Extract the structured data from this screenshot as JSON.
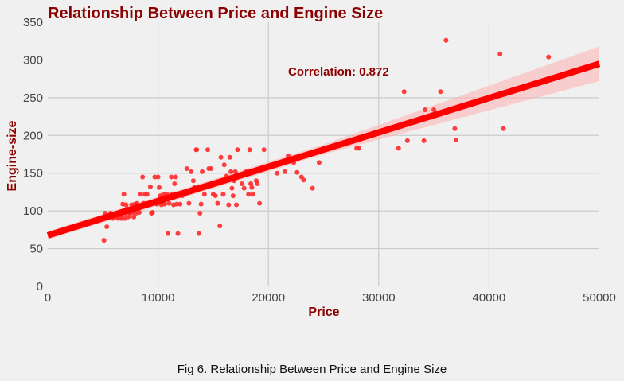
{
  "caption": "Fig 6. Relationship Between Price and Engine Size",
  "chart_data": {
    "type": "scatter",
    "title": "Relationship Between Price and Engine Size",
    "xlabel": "Price",
    "ylabel": "Engine-size",
    "xlim": [
      0,
      50000
    ],
    "ylim": [
      0,
      350
    ],
    "xticks": [
      0,
      10000,
      20000,
      30000,
      40000,
      50000
    ],
    "yticks": [
      0,
      50,
      100,
      150,
      200,
      250,
      300,
      350
    ],
    "grid": true,
    "annotation": "Correlation: 0.872",
    "regression": {
      "slope": 0.00455,
      "intercept": 67.5
    },
    "confidence_band": [
      [
        0,
        62,
        73
      ],
      [
        25000,
        175,
        188
      ],
      [
        50000,
        272,
        318
      ]
    ],
    "colors": {
      "points": "#ff2a2a",
      "line": "#ff0000",
      "band": "#ffb0b0"
    },
    "points": [
      [
        5100,
        61
      ],
      [
        5200,
        97
      ],
      [
        5350,
        79
      ],
      [
        5500,
        92
      ],
      [
        5700,
        97
      ],
      [
        5900,
        90
      ],
      [
        6200,
        92
      ],
      [
        6300,
        95
      ],
      [
        6400,
        90
      ],
      [
        6500,
        97
      ],
      [
        6600,
        92
      ],
      [
        6700,
        90
      ],
      [
        6800,
        109
      ],
      [
        6900,
        122
      ],
      [
        7000,
        90
      ],
      [
        7050,
        97
      ],
      [
        7100,
        108
      ],
      [
        7200,
        103
      ],
      [
        7300,
        92
      ],
      [
        7400,
        98
      ],
      [
        7500,
        97
      ],
      [
        7600,
        108
      ],
      [
        7700,
        98
      ],
      [
        7800,
        92
      ],
      [
        7900,
        109
      ],
      [
        8000,
        97
      ],
      [
        8100,
        110
      ],
      [
        8200,
        103
      ],
      [
        8300,
        98
      ],
      [
        8400,
        122
      ],
      [
        8500,
        108
      ],
      [
        8600,
        145
      ],
      [
        8700,
        110
      ],
      [
        8800,
        122
      ],
      [
        8900,
        109
      ],
      [
        9000,
        122
      ],
      [
        9100,
        110
      ],
      [
        9200,
        108
      ],
      [
        9300,
        132
      ],
      [
        9400,
        97
      ],
      [
        9500,
        98
      ],
      [
        9600,
        110
      ],
      [
        9700,
        145
      ],
      [
        9800,
        110
      ],
      [
        9900,
        109
      ],
      [
        10000,
        145
      ],
      [
        10100,
        131
      ],
      [
        10200,
        120
      ],
      [
        10300,
        108
      ],
      [
        10400,
        110
      ],
      [
        10500,
        122
      ],
      [
        10600,
        109
      ],
      [
        10700,
        120
      ],
      [
        10800,
        122
      ],
      [
        10900,
        70
      ],
      [
        11000,
        110
      ],
      [
        11100,
        120
      ],
      [
        11200,
        145
      ],
      [
        11300,
        122
      ],
      [
        11400,
        108
      ],
      [
        11500,
        136
      ],
      [
        11600,
        145
      ],
      [
        11700,
        109
      ],
      [
        11800,
        70
      ],
      [
        11900,
        122
      ],
      [
        12000,
        109
      ],
      [
        12200,
        120
      ],
      [
        12400,
        122
      ],
      [
        12600,
        156
      ],
      [
        12800,
        110
      ],
      [
        13000,
        152
      ],
      [
        13200,
        140
      ],
      [
        13300,
        131
      ],
      [
        13450,
        181
      ],
      [
        13500,
        181
      ],
      [
        13700,
        70
      ],
      [
        13800,
        97
      ],
      [
        13900,
        109
      ],
      [
        14000,
        152
      ],
      [
        14200,
        122
      ],
      [
        14500,
        181
      ],
      [
        14600,
        156
      ],
      [
        14800,
        156
      ],
      [
        15000,
        122
      ],
      [
        15200,
        120
      ],
      [
        15400,
        110
      ],
      [
        15600,
        80
      ],
      [
        15700,
        171
      ],
      [
        15900,
        122
      ],
      [
        16000,
        161
      ],
      [
        16200,
        146
      ],
      [
        16400,
        108
      ],
      [
        16500,
        171
      ],
      [
        16600,
        152
      ],
      [
        16700,
        130
      ],
      [
        16800,
        120
      ],
      [
        16900,
        140
      ],
      [
        17000,
        152
      ],
      [
        17100,
        108
      ],
      [
        17200,
        181
      ],
      [
        17400,
        146
      ],
      [
        17600,
        136
      ],
      [
        17800,
        130
      ],
      [
        18000,
        152
      ],
      [
        18200,
        122
      ],
      [
        18300,
        181
      ],
      [
        18400,
        136
      ],
      [
        18500,
        131
      ],
      [
        18600,
        122
      ],
      [
        18800,
        152
      ],
      [
        18900,
        140
      ],
      [
        19000,
        136
      ],
      [
        19200,
        110
      ],
      [
        19600,
        181
      ],
      [
        20800,
        150
      ],
      [
        21500,
        152
      ],
      [
        21800,
        173
      ],
      [
        22300,
        164
      ],
      [
        22600,
        151
      ],
      [
        23000,
        145
      ],
      [
        23200,
        141
      ],
      [
        24000,
        130
      ],
      [
        24600,
        164
      ],
      [
        28000,
        183
      ],
      [
        28200,
        183
      ],
      [
        31800,
        183
      ],
      [
        32300,
        258
      ],
      [
        32600,
        193
      ],
      [
        34100,
        193
      ],
      [
        34200,
        234
      ],
      [
        35000,
        234
      ],
      [
        35600,
        258
      ],
      [
        36100,
        326
      ],
      [
        36900,
        209
      ],
      [
        37000,
        194
      ],
      [
        41000,
        308
      ],
      [
        41300,
        209
      ],
      [
        45400,
        304
      ]
    ]
  }
}
